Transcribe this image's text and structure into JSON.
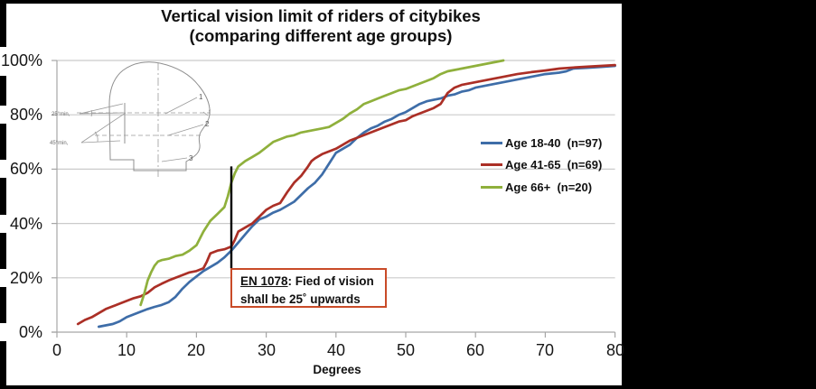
{
  "title": {
    "line1": "Vertical vision limit of riders of citybikes",
    "line2": "(comparing different age groups)"
  },
  "chart_data": {
    "type": "line",
    "title": "Vertical vision limit of riders of citybikes (comparing different age groups)",
    "xlabel": "Degrees",
    "ylabel": "",
    "xlim": [
      0,
      80
    ],
    "ylim": [
      0,
      100
    ],
    "x_ticks": [
      0,
      10,
      20,
      30,
      40,
      50,
      60,
      70,
      80
    ],
    "x_tick_labels": [
      "0",
      "10",
      "20",
      "30",
      "40",
      "50",
      "60",
      "70",
      "80"
    ],
    "y_ticks": [
      0,
      20,
      40,
      60,
      80,
      100
    ],
    "y_tick_labels": [
      "0%",
      "20%",
      "40%",
      "60%",
      "80%",
      "100%"
    ],
    "grid": "horizontal",
    "legend_position": "right-middle",
    "series": [
      {
        "name": "Age 18-40  (n=97)",
        "color": "#3E6DA8",
        "points": [
          [
            6,
            2
          ],
          [
            7,
            2.5
          ],
          [
            8,
            3
          ],
          [
            9,
            4
          ],
          [
            10,
            5.5
          ],
          [
            11,
            6.5
          ],
          [
            12,
            7.5
          ],
          [
            13,
            8.5
          ],
          [
            14,
            9.3
          ],
          [
            15,
            10
          ],
          [
            16,
            11
          ],
          [
            17,
            13
          ],
          [
            18,
            16
          ],
          [
            19,
            18.5
          ],
          [
            20,
            20.5
          ],
          [
            21,
            22.5
          ],
          [
            22,
            24
          ],
          [
            23,
            25.5
          ],
          [
            24,
            27.5
          ],
          [
            25,
            30
          ],
          [
            26,
            33
          ],
          [
            27,
            36
          ],
          [
            28,
            39
          ],
          [
            29,
            41.5
          ],
          [
            30,
            42.5
          ],
          [
            31,
            44
          ],
          [
            32,
            45
          ],
          [
            33,
            46.5
          ],
          [
            34,
            48
          ],
          [
            35,
            50.5
          ],
          [
            36,
            53
          ],
          [
            37,
            55
          ],
          [
            38,
            58
          ],
          [
            39,
            62
          ],
          [
            40,
            66
          ],
          [
            41,
            67.5
          ],
          [
            42,
            69
          ],
          [
            43,
            71.5
          ],
          [
            44,
            73.5
          ],
          [
            45,
            75
          ],
          [
            46,
            76
          ],
          [
            47,
            77.5
          ],
          [
            48,
            78.5
          ],
          [
            49,
            80
          ],
          [
            50,
            81
          ],
          [
            51,
            82.5
          ],
          [
            52,
            84
          ],
          [
            53,
            85
          ],
          [
            54,
            85.5
          ],
          [
            55,
            86
          ],
          [
            56,
            87
          ],
          [
            57,
            87.5
          ],
          [
            58,
            88.5
          ],
          [
            59,
            89
          ],
          [
            60,
            90
          ],
          [
            62,
            91
          ],
          [
            64,
            92
          ],
          [
            66,
            93
          ],
          [
            68,
            94
          ],
          [
            70,
            95
          ],
          [
            72,
            95.5
          ],
          [
            73,
            96
          ],
          [
            74,
            97
          ],
          [
            76,
            97.3
          ],
          [
            78,
            97.6
          ],
          [
            80,
            98
          ]
        ]
      },
      {
        "name": "Age 41-65  (n=69)",
        "color": "#AB2F26",
        "points": [
          [
            3,
            3
          ],
          [
            4,
            4.5
          ],
          [
            5,
            5.5
          ],
          [
            6,
            7
          ],
          [
            7,
            8.5
          ],
          [
            8,
            9.5
          ],
          [
            9,
            10.5
          ],
          [
            10,
            11.5
          ],
          [
            11,
            12.5
          ],
          [
            12,
            13.2
          ],
          [
            13,
            14.5
          ],
          [
            14,
            16.5
          ],
          [
            15,
            17.8
          ],
          [
            16,
            19
          ],
          [
            17,
            20
          ],
          [
            18,
            21
          ],
          [
            19,
            22
          ],
          [
            20,
            22.5
          ],
          [
            21,
            23.5
          ],
          [
            21.5,
            26
          ],
          [
            22,
            29
          ],
          [
            23,
            30
          ],
          [
            24,
            30.5
          ],
          [
            25,
            31.5
          ],
          [
            25.5,
            34
          ],
          [
            26,
            37
          ],
          [
            27,
            38.5
          ],
          [
            28,
            40
          ],
          [
            29,
            42.5
          ],
          [
            30,
            45
          ],
          [
            31,
            46.5
          ],
          [
            32,
            47.5
          ],
          [
            33,
            51.5
          ],
          [
            34,
            55
          ],
          [
            35,
            57.5
          ],
          [
            36,
            61
          ],
          [
            36.5,
            63
          ],
          [
            37,
            64
          ],
          [
            38,
            65.5
          ],
          [
            39,
            66.5
          ],
          [
            40,
            67.5
          ],
          [
            41,
            69
          ],
          [
            42,
            70.5
          ],
          [
            43,
            71.5
          ],
          [
            44,
            72.5
          ],
          [
            45,
            73.5
          ],
          [
            46,
            74.5
          ],
          [
            47,
            75.5
          ],
          [
            48,
            76.5
          ],
          [
            49,
            77.5
          ],
          [
            50,
            78
          ],
          [
            51,
            79.5
          ],
          [
            52,
            80.5
          ],
          [
            53,
            81.5
          ],
          [
            54,
            82.5
          ],
          [
            55,
            84
          ],
          [
            56,
            88
          ],
          [
            57,
            90
          ],
          [
            58,
            91
          ],
          [
            59,
            91.5
          ],
          [
            60,
            92
          ],
          [
            62,
            93
          ],
          [
            64,
            94
          ],
          [
            66,
            95
          ],
          [
            68,
            95.7
          ],
          [
            70,
            96.3
          ],
          [
            72,
            97
          ],
          [
            74,
            97.4
          ],
          [
            76,
            97.7
          ],
          [
            78,
            98
          ],
          [
            80,
            98.3
          ]
        ]
      },
      {
        "name": "Age 66+  (n=20)",
        "color": "#8FB03C",
        "points": [
          [
            12,
            10
          ],
          [
            12.5,
            14
          ],
          [
            13,
            19
          ],
          [
            13.5,
            22
          ],
          [
            14,
            24.5
          ],
          [
            14.5,
            26
          ],
          [
            15,
            26.5
          ],
          [
            16,
            27
          ],
          [
            17,
            28
          ],
          [
            18,
            28.5
          ],
          [
            19,
            30
          ],
          [
            20,
            32
          ],
          [
            21,
            37
          ],
          [
            22,
            41
          ],
          [
            23,
            43.5
          ],
          [
            24,
            46
          ],
          [
            24.5,
            50
          ],
          [
            25,
            55
          ],
          [
            25.5,
            58.5
          ],
          [
            26,
            61
          ],
          [
            27,
            63
          ],
          [
            28,
            64.5
          ],
          [
            29,
            66
          ],
          [
            30,
            68
          ],
          [
            31,
            70
          ],
          [
            32,
            71
          ],
          [
            33,
            72
          ],
          [
            34,
            72.5
          ],
          [
            35,
            73.5
          ],
          [
            36,
            74
          ],
          [
            37,
            74.5
          ],
          [
            38,
            75
          ],
          [
            39,
            75.5
          ],
          [
            40,
            77
          ],
          [
            41,
            78.5
          ],
          [
            42,
            80.5
          ],
          [
            43,
            82
          ],
          [
            44,
            84
          ],
          [
            45,
            85
          ],
          [
            46,
            86
          ],
          [
            47,
            87
          ],
          [
            48,
            88
          ],
          [
            49,
            89
          ],
          [
            50,
            89.5
          ],
          [
            51,
            90.5
          ],
          [
            52,
            91.5
          ],
          [
            53,
            92.5
          ],
          [
            54,
            93.5
          ],
          [
            55,
            95
          ],
          [
            56,
            96
          ],
          [
            57,
            96.5
          ],
          [
            58,
            97
          ],
          [
            59,
            97.5
          ],
          [
            60,
            98
          ],
          [
            61,
            98.5
          ],
          [
            62,
            99
          ],
          [
            63,
            99.5
          ],
          [
            64,
            100
          ]
        ]
      }
    ],
    "reference_line": {
      "x": 25,
      "y_top": 61,
      "y_bottom": 23.6,
      "color": "#000000"
    }
  },
  "annotation": {
    "ref": "EN 1078",
    "rest": ": Fied of vision",
    "line2": "shall be 25˚ upwards",
    "border_color": "#C94B28"
  },
  "diagram": {
    "label_25": "25°min,",
    "label_45": "45°min,",
    "callout_1": "1",
    "callout_1b": "f",
    "callout_2": "2",
    "callout_3": "3"
  }
}
